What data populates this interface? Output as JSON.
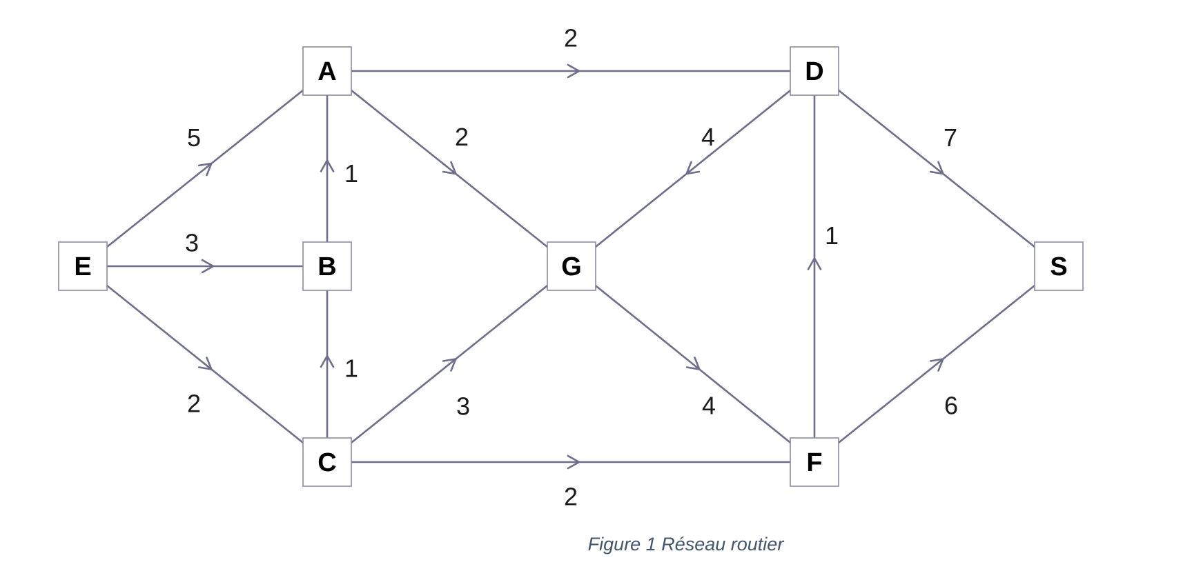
{
  "caption": "Figure 1 Réseau routier",
  "colors": {
    "edge": "#6e6e8a",
    "node_border": "#8a8a9e",
    "caption": "#44546a"
  },
  "nodes": [
    {
      "id": "E",
      "label": "E"
    },
    {
      "id": "A",
      "label": "A"
    },
    {
      "id": "B",
      "label": "B"
    },
    {
      "id": "C",
      "label": "C"
    },
    {
      "id": "G",
      "label": "G"
    },
    {
      "id": "D",
      "label": "D"
    },
    {
      "id": "F",
      "label": "F"
    },
    {
      "id": "S",
      "label": "S"
    }
  ],
  "edges": [
    {
      "from": "E",
      "to": "A",
      "weight": "5"
    },
    {
      "from": "E",
      "to": "B",
      "weight": "3"
    },
    {
      "from": "E",
      "to": "C",
      "weight": "2"
    },
    {
      "from": "B",
      "to": "A",
      "weight": "1"
    },
    {
      "from": "C",
      "to": "B",
      "weight": "1"
    },
    {
      "from": "A",
      "to": "D",
      "weight": "2"
    },
    {
      "from": "A",
      "to": "G",
      "weight": "2"
    },
    {
      "from": "C",
      "to": "G",
      "weight": "3"
    },
    {
      "from": "C",
      "to": "F",
      "weight": "2"
    },
    {
      "from": "D",
      "to": "G",
      "weight": "4"
    },
    {
      "from": "G",
      "to": "F",
      "weight": "4"
    },
    {
      "from": "F",
      "to": "D",
      "weight": "1"
    },
    {
      "from": "D",
      "to": "S",
      "weight": "7"
    },
    {
      "from": "F",
      "to": "S",
      "weight": "6"
    }
  ]
}
